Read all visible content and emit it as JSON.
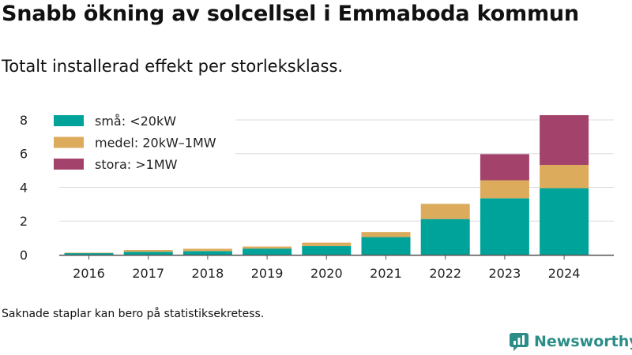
{
  "title": "Snabb ökning av solcellsel i Emmaboda kommun",
  "subtitle": "Totalt installerad effekt per storleksklass.",
  "footnote": "Saknade staplar kan bero på statistiksekretess.",
  "brand": {
    "name": "Newsworthy",
    "icon": "newsworthy-logo-icon",
    "color": "#2a8d87"
  },
  "chart_data": {
    "type": "bar",
    "stacked": true,
    "categories": [
      "2016",
      "2017",
      "2018",
      "2019",
      "2020",
      "2021",
      "2022",
      "2023",
      "2024"
    ],
    "series": [
      {
        "name": "små: <20kW",
        "color": "#00a39a",
        "values": [
          0.1,
          0.18,
          0.22,
          0.37,
          0.52,
          1.05,
          2.12,
          3.35,
          3.95
        ]
      },
      {
        "name": "medel: 20kW–1MW",
        "color": "#dcab5b",
        "values": [
          0.03,
          0.1,
          0.14,
          0.12,
          0.2,
          0.3,
          0.9,
          1.07,
          1.38
        ]
      },
      {
        "name": "stora: >1MW",
        "color": "#a3436b",
        "values": [
          0,
          0,
          0,
          0,
          0,
          0,
          0,
          1.55,
          2.95
        ]
      }
    ],
    "yticks": [
      "0",
      "2",
      "4",
      "6",
      "8"
    ],
    "ylim": [
      0,
      8.7
    ],
    "grid": true,
    "legend_position": "top-left"
  }
}
